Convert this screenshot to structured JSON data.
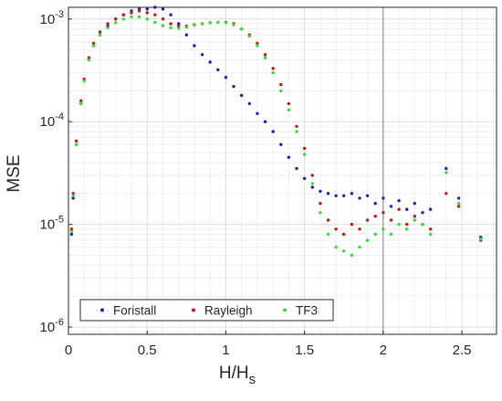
{
  "chart_data": {
    "type": "scatter",
    "title": "",
    "xlabel": "H/H",
    "xlabel_sub": "s",
    "ylabel": "MSE",
    "xlim": [
      0,
      2.72
    ],
    "ylim": [
      8.5e-07,
      0.0013
    ],
    "yscale": "log",
    "grid": true,
    "minor_grid": true,
    "reference_line_x": 2,
    "legend_position": "bottom-left",
    "x_ticks": [
      {
        "value": 0,
        "label": "0"
      },
      {
        "value": 0.5,
        "label": "0.5"
      },
      {
        "value": 1,
        "label": "1"
      },
      {
        "value": 1.5,
        "label": "1.5"
      },
      {
        "value": 2,
        "label": "2"
      },
      {
        "value": 2.5,
        "label": "2.5"
      }
    ],
    "y_ticks": [
      {
        "value": 1e-06,
        "base": "10",
        "exp": "-6"
      },
      {
        "value": 1e-05,
        "base": "10",
        "exp": "-5"
      },
      {
        "value": 0.0001,
        "base": "10",
        "exp": "-4"
      },
      {
        "value": 0.001,
        "base": "10",
        "exp": "-3"
      }
    ],
    "series": [
      {
        "name": "Foristall",
        "color": "#1f1fb4",
        "points": [
          [
            0.02,
            8e-06
          ],
          [
            0.03,
            1.8e-05
          ],
          [
            0.05,
            6e-05
          ],
          [
            0.08,
            0.00015
          ],
          [
            0.1,
            0.00025
          ],
          [
            0.13,
            0.0004
          ],
          [
            0.16,
            0.00055
          ],
          [
            0.2,
            0.0007
          ],
          [
            0.25,
            0.00085
          ],
          [
            0.3,
            0.001
          ],
          [
            0.35,
            0.0011
          ],
          [
            0.4,
            0.0012
          ],
          [
            0.45,
            0.00125
          ],
          [
            0.5,
            0.00125
          ],
          [
            0.55,
            0.0013
          ],
          [
            0.6,
            0.00125
          ],
          [
            0.65,
            0.0011
          ],
          [
            0.7,
            0.0009
          ],
          [
            0.75,
            0.0007
          ],
          [
            0.8,
            0.00055
          ],
          [
            0.85,
            0.00045
          ],
          [
            0.9,
            0.00038
          ],
          [
            0.95,
            0.00032
          ],
          [
            1.0,
            0.00027
          ],
          [
            1.05,
            0.00022
          ],
          [
            1.1,
            0.00018
          ],
          [
            1.15,
            0.00015
          ],
          [
            1.2,
            0.00012
          ],
          [
            1.25,
            0.0001
          ],
          [
            1.3,
            8e-05
          ],
          [
            1.35,
            6e-05
          ],
          [
            1.4,
            4.5e-05
          ],
          [
            1.45,
            3.5e-05
          ],
          [
            1.5,
            2.8e-05
          ],
          [
            1.55,
            2.3e-05
          ],
          [
            1.6,
            2.1e-05
          ],
          [
            1.65,
            2e-05
          ],
          [
            1.7,
            1.9e-05
          ],
          [
            1.75,
            1.9e-05
          ],
          [
            1.8,
            2e-05
          ],
          [
            1.85,
            1.8e-05
          ],
          [
            1.9,
            1.9e-05
          ],
          [
            1.95,
            1.6e-05
          ],
          [
            2.0,
            1.8e-05
          ],
          [
            2.05,
            1.5e-05
          ],
          [
            2.1,
            1.7e-05
          ],
          [
            2.15,
            1.4e-05
          ],
          [
            2.2,
            1.6e-05
          ],
          [
            2.25,
            1.3e-05
          ],
          [
            2.3,
            1.4e-05
          ],
          [
            2.4,
            3.5e-05
          ],
          [
            2.48,
            1.8e-05
          ],
          [
            2.62,
            7.5e-06
          ]
        ]
      },
      {
        "name": "Rayleigh",
        "color": "#c81414",
        "points": [
          [
            0.02,
            9e-06
          ],
          [
            0.03,
            2e-05
          ],
          [
            0.05,
            6.5e-05
          ],
          [
            0.08,
            0.00016
          ],
          [
            0.1,
            0.00026
          ],
          [
            0.13,
            0.00042
          ],
          [
            0.16,
            0.00058
          ],
          [
            0.2,
            0.00075
          ],
          [
            0.25,
            0.0009
          ],
          [
            0.3,
            0.001
          ],
          [
            0.35,
            0.0011
          ],
          [
            0.4,
            0.00115
          ],
          [
            0.45,
            0.0012
          ],
          [
            0.5,
            0.00115
          ],
          [
            0.55,
            0.0011
          ],
          [
            0.6,
            0.001
          ],
          [
            0.65,
            0.0009
          ],
          [
            0.7,
            0.00085
          ],
          [
            0.75,
            0.00085
          ],
          [
            0.8,
            0.00088
          ],
          [
            0.85,
            0.0009
          ],
          [
            0.9,
            0.00092
          ],
          [
            0.95,
            0.00093
          ],
          [
            1.0,
            0.00093
          ],
          [
            1.05,
            0.0009
          ],
          [
            1.1,
            0.0008
          ],
          [
            1.15,
            0.0007
          ],
          [
            1.2,
            0.00058
          ],
          [
            1.25,
            0.00045
          ],
          [
            1.3,
            0.00033
          ],
          [
            1.35,
            0.00023
          ],
          [
            1.4,
            0.00015
          ],
          [
            1.45,
            9e-05
          ],
          [
            1.5,
            5.5e-05
          ],
          [
            1.55,
            3e-05
          ],
          [
            1.6,
            1.6e-05
          ],
          [
            1.65,
            1.1e-05
          ],
          [
            1.7,
            9e-06
          ],
          [
            1.75,
            8e-06
          ],
          [
            1.8,
            1e-05
          ],
          [
            1.85,
            9e-06
          ],
          [
            1.9,
            1.1e-05
          ],
          [
            1.95,
            1.2e-05
          ],
          [
            2.0,
            1.3e-05
          ],
          [
            2.05,
            1.1e-05
          ],
          [
            2.1,
            1.4e-05
          ],
          [
            2.15,
            1e-05
          ],
          [
            2.2,
            1.2e-05
          ],
          [
            2.25,
            1e-05
          ],
          [
            2.3,
            9e-06
          ],
          [
            2.4,
            2e-05
          ],
          [
            2.48,
            1.5e-05
          ],
          [
            2.62,
            7e-06
          ]
        ]
      },
      {
        "name": "TF3",
        "color": "#33e033",
        "points": [
          [
            0.02,
            8.5e-06
          ],
          [
            0.03,
            1.9e-05
          ],
          [
            0.05,
            6e-05
          ],
          [
            0.08,
            0.00015
          ],
          [
            0.1,
            0.00025
          ],
          [
            0.13,
            0.0004
          ],
          [
            0.16,
            0.00055
          ],
          [
            0.2,
            0.0007
          ],
          [
            0.25,
            0.00082
          ],
          [
            0.3,
            0.00092
          ],
          [
            0.35,
            0.001
          ],
          [
            0.4,
            0.00105
          ],
          [
            0.45,
            0.00105
          ],
          [
            0.5,
            0.001
          ],
          [
            0.55,
            0.00093
          ],
          [
            0.6,
            0.00086
          ],
          [
            0.65,
            0.00082
          ],
          [
            0.7,
            0.00081
          ],
          [
            0.75,
            0.00083
          ],
          [
            0.8,
            0.00087
          ],
          [
            0.85,
            0.0009
          ],
          [
            0.9,
            0.00092
          ],
          [
            0.95,
            0.00093
          ],
          [
            1.0,
            0.00092
          ],
          [
            1.05,
            0.00088
          ],
          [
            1.1,
            0.0008
          ],
          [
            1.15,
            0.00068
          ],
          [
            1.2,
            0.00055
          ],
          [
            1.25,
            0.00042
          ],
          [
            1.3,
            0.0003
          ],
          [
            1.35,
            0.0002
          ],
          [
            1.4,
            0.00013
          ],
          [
            1.45,
            8e-05
          ],
          [
            1.5,
            4.8e-05
          ],
          [
            1.55,
            2.5e-05
          ],
          [
            1.6,
            1.3e-05
          ],
          [
            1.65,
            8e-06
          ],
          [
            1.7,
            6e-06
          ],
          [
            1.75,
            5.5e-06
          ],
          [
            1.8,
            5e-06
          ],
          [
            1.85,
            6e-06
          ],
          [
            1.9,
            7e-06
          ],
          [
            1.95,
            8e-06
          ],
          [
            2.0,
            9e-06
          ],
          [
            2.05,
            8e-06
          ],
          [
            2.1,
            1e-05
          ],
          [
            2.15,
            9e-06
          ],
          [
            2.2,
            1.1e-05
          ],
          [
            2.25,
            1e-05
          ],
          [
            2.3,
            8e-06
          ],
          [
            2.4,
            3.2e-05
          ],
          [
            2.48,
            1.6e-05
          ],
          [
            2.62,
            7.2e-06
          ]
        ]
      }
    ]
  }
}
